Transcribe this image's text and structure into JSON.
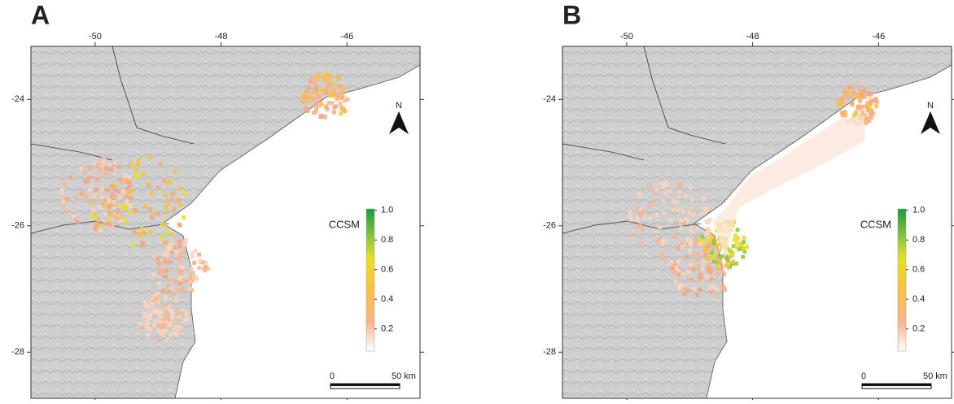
{
  "map": {
    "xlim": [
      -51.02,
      -44.84
    ],
    "ylim": [
      -28.73,
      -23.16
    ],
    "xticks": [
      -50,
      -48,
      -46
    ],
    "yticks": [
      -24,
      -26,
      -28
    ],
    "north_label": "N",
    "scale_labels": [
      "0",
      "50 km"
    ],
    "colorbar": {
      "title": "CCSM",
      "lim": [
        0.05,
        1.01
      ],
      "ticks": [
        {
          "value": 1,
          "label": "1.0"
        },
        0.8,
        0.6,
        0.4,
        0.2
      ]
    },
    "panels": [
      {
        "label": "A"
      },
      {
        "label": "B"
      }
    ]
  }
}
